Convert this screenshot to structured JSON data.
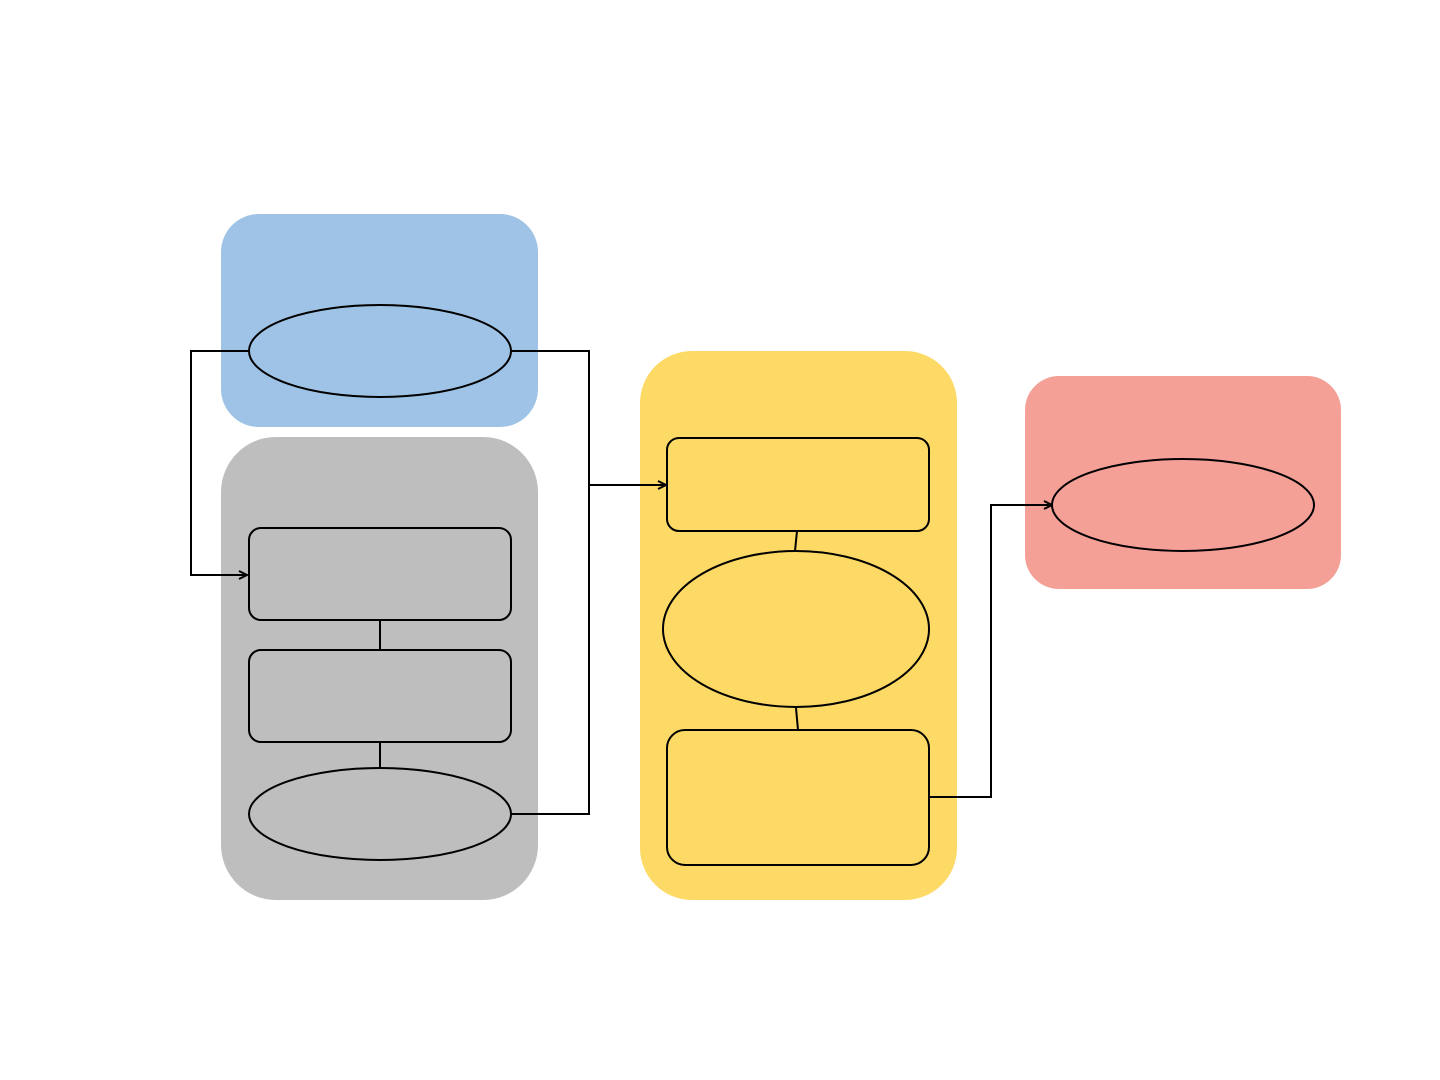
{
  "diagram": {
    "type": "flowchart",
    "background": "#ffffff",
    "groups": [
      {
        "id": "input-group",
        "fill": "#9fc3e7"
      },
      {
        "id": "process-group",
        "fill": "#bebebe"
      },
      {
        "id": "center-group",
        "fill": "#fdd966"
      },
      {
        "id": "output-group",
        "fill": "#f4a096"
      }
    ],
    "nodes": [
      {
        "id": "input-ellipse",
        "shape": "ellipse",
        "label": ""
      },
      {
        "id": "process-box-1",
        "shape": "rounded-rect",
        "label": ""
      },
      {
        "id": "process-box-2",
        "shape": "rounded-rect",
        "label": ""
      },
      {
        "id": "process-ellipse",
        "shape": "ellipse",
        "label": ""
      },
      {
        "id": "center-box-top",
        "shape": "rounded-rect",
        "label": ""
      },
      {
        "id": "center-ellipse",
        "shape": "ellipse",
        "label": ""
      },
      {
        "id": "center-box-bottom",
        "shape": "rounded-rect",
        "label": ""
      },
      {
        "id": "output-ellipse",
        "shape": "ellipse",
        "label": ""
      }
    ],
    "edges": [
      {
        "from": "input-ellipse",
        "to": "process-box-1",
        "arrow": true
      },
      {
        "from": "input-ellipse",
        "to": "center-box-top",
        "arrow": true
      },
      {
        "from": "process-ellipse",
        "to": "center-box-top",
        "arrow": true
      },
      {
        "from": "process-box-1",
        "to": "process-box-2",
        "arrow": false
      },
      {
        "from": "process-box-2",
        "to": "process-ellipse",
        "arrow": false
      },
      {
        "from": "center-box-top",
        "to": "center-ellipse",
        "arrow": false
      },
      {
        "from": "center-ellipse",
        "to": "center-box-bottom",
        "arrow": false
      },
      {
        "from": "center-box-bottom",
        "to": "output-ellipse",
        "arrow": true
      }
    ]
  }
}
